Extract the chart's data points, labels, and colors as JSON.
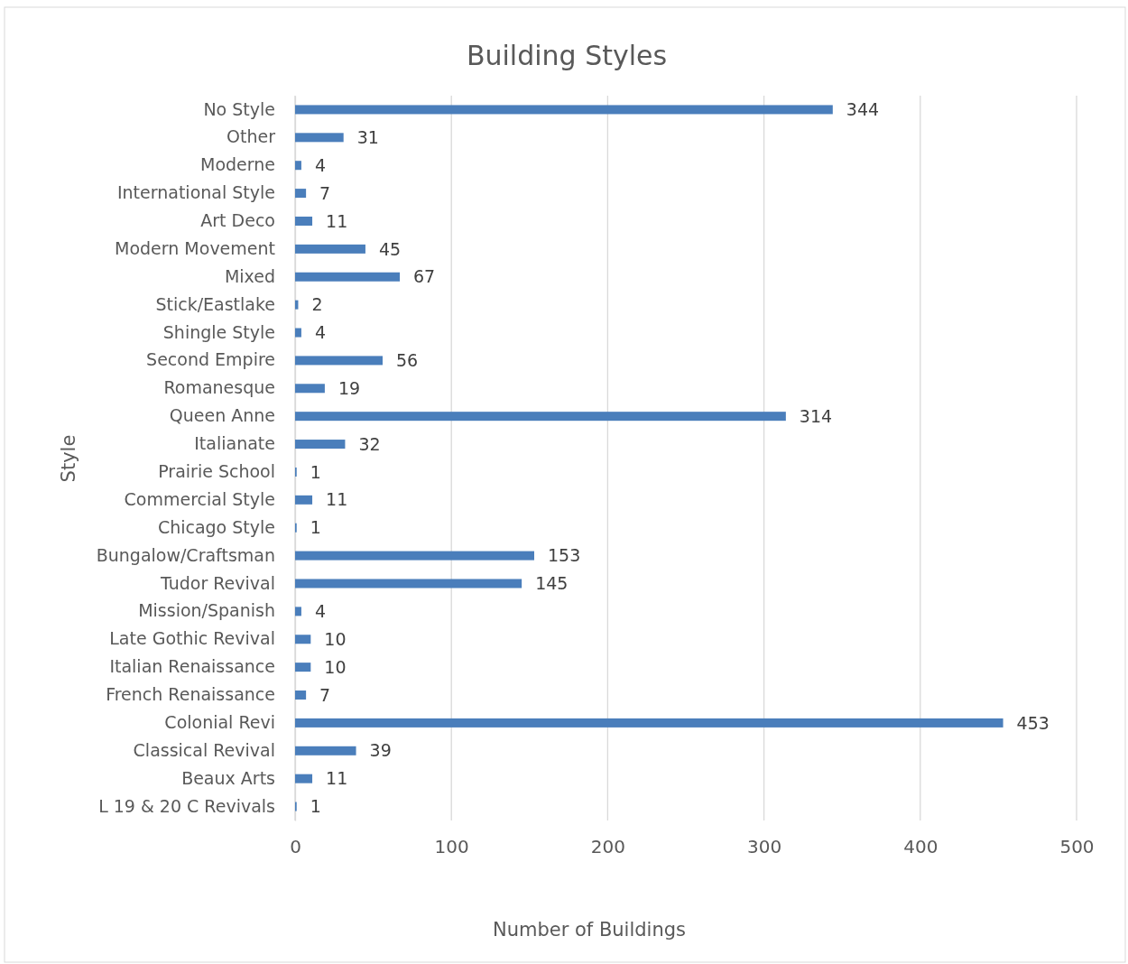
{
  "chart_data": {
    "type": "bar",
    "orientation": "horizontal",
    "title": "Building Styles",
    "xlabel": "Number of Buildings",
    "ylabel": "Style",
    "categories": [
      "No Style",
      "Other",
      "Moderne",
      "International Style",
      "Art Deco",
      "Modern Movement",
      "Mixed",
      "Stick/Eastlake",
      "Shingle Style",
      "Second Empire",
      "Romanesque",
      "Queen Anne",
      "Italianate",
      "Prairie School",
      "Commercial Style",
      "Chicago Style",
      "Bungalow/Craftsman",
      "Tudor Revival",
      "Mission/Spanish",
      "Late Gothic Revival",
      "Italian Renaissance",
      "French Renaissance",
      "Colonial Revi",
      "Classical Revival",
      "Beaux Arts",
      "L 19 & 20 C Revivals"
    ],
    "values": [
      344,
      31,
      4,
      7,
      11,
      45,
      67,
      2,
      4,
      56,
      19,
      314,
      32,
      1,
      11,
      1,
      153,
      145,
      4,
      10,
      10,
      7,
      453,
      39,
      11,
      1
    ],
    "color": "#4a7ebb",
    "xlim": [
      0,
      500
    ],
    "xticks": [
      0,
      100,
      200,
      300,
      400,
      500
    ],
    "grid": "x",
    "data_labels": true
  }
}
